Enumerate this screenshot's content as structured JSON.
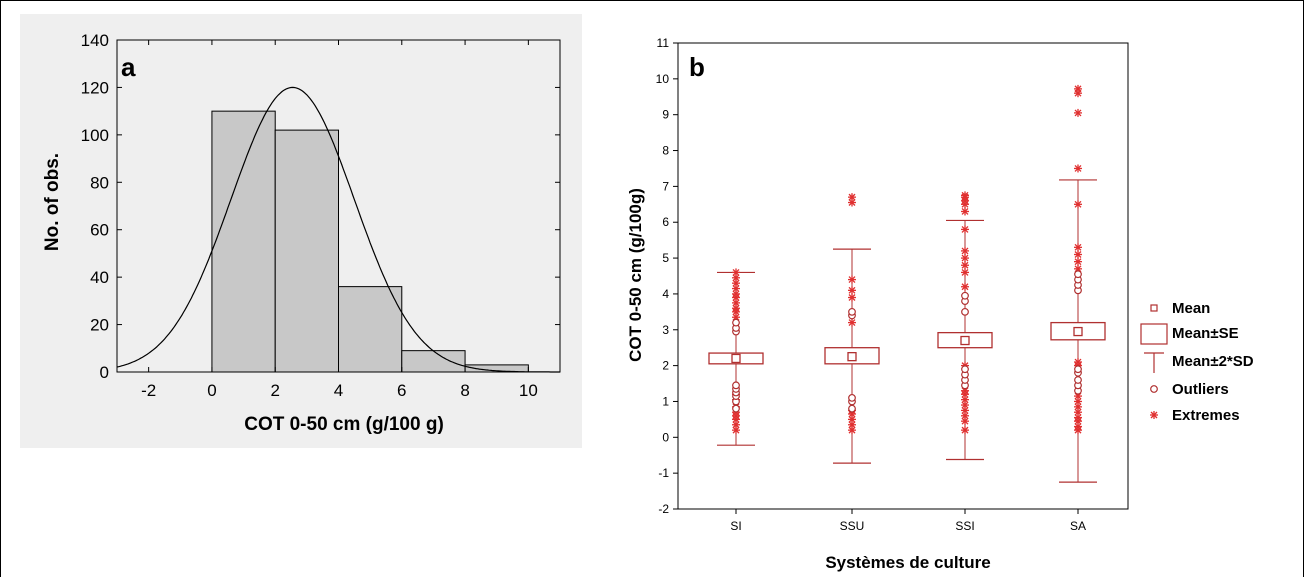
{
  "chart_data": [
    {
      "type": "bar",
      "subtype": "histogram-with-normal-fit",
      "panel_label": "a",
      "xlabel": "COT 0-50 cm (g/100 g)",
      "ylabel": "No. of obs.",
      "xlim": [
        -3,
        11
      ],
      "ylim": [
        0,
        140
      ],
      "x_ticks": [
        "-2",
        "0",
        "2",
        "4",
        "6",
        "8",
        "10"
      ],
      "y_ticks": [
        "0",
        "20",
        "40",
        "60",
        "80",
        "100",
        "120",
        "140"
      ],
      "bins": [
        {
          "from": 0,
          "to": 2,
          "count": 110
        },
        {
          "from": 2,
          "to": 4,
          "count": 102
        },
        {
          "from": 4,
          "to": 6,
          "count": 36
        },
        {
          "from": 6,
          "to": 8,
          "count": 9
        },
        {
          "from": 8,
          "to": 10,
          "count": 3
        }
      ],
      "normal_curve": {
        "mean": 2.55,
        "peak": 120
      },
      "bar_color": "#c8c8c8"
    },
    {
      "type": "box",
      "panel_label": "b",
      "xlabel": "Systèmes de culture",
      "ylabel": "COT 0-50 cm (g/100g)",
      "ylim": [
        -2,
        11
      ],
      "y_ticks": [
        "-2",
        "-1",
        "0",
        "1",
        "2",
        "3",
        "4",
        "5",
        "6",
        "7",
        "8",
        "9",
        "10",
        "11"
      ],
      "categories": [
        "SI",
        "SSU",
        "SSI",
        "SA"
      ],
      "groups": [
        {
          "name": "SI",
          "mean": 2.2,
          "se_low": 2.05,
          "se_high": 2.35,
          "sd2_low": -0.22,
          "sd2_high": 4.6,
          "outliers": [
            0.8,
            1.0,
            1.15,
            1.25,
            1.35,
            1.45,
            2.95,
            3.05,
            3.2
          ],
          "extremes": [
            0.2,
            0.35,
            0.5,
            0.6,
            0.7,
            0.85,
            1.05,
            1.2,
            3.35,
            3.5,
            3.6,
            3.75,
            3.9,
            4.0,
            4.15,
            4.3,
            4.45,
            4.6
          ]
        },
        {
          "name": "SSU",
          "mean": 2.25,
          "se_low": 2.05,
          "se_high": 2.5,
          "sd2_low": -0.72,
          "sd2_high": 5.25,
          "outliers": [
            0.8,
            1.0,
            1.1,
            3.4,
            3.5
          ],
          "extremes": [
            0.2,
            0.35,
            0.5,
            0.65,
            0.75,
            3.2,
            3.9,
            4.1,
            4.4,
            6.55,
            6.7
          ]
        },
        {
          "name": "SSI",
          "mean": 2.7,
          "se_low": 2.5,
          "se_high": 2.92,
          "sd2_low": -0.62,
          "sd2_high": 6.05,
          "outliers": [
            1.45,
            1.6,
            1.75,
            1.9,
            3.5,
            3.8,
            3.95
          ],
          "extremes": [
            0.2,
            0.45,
            0.6,
            0.75,
            0.9,
            1.05,
            1.2,
            1.3,
            2.0,
            4.2,
            4.6,
            4.8,
            5.0,
            5.2,
            5.8,
            6.3,
            6.5,
            6.6,
            6.7,
            6.75
          ]
        },
        {
          "name": "SA",
          "mean": 2.95,
          "se_low": 2.72,
          "se_high": 3.2,
          "sd2_low": -1.25,
          "sd2_high": 7.18,
          "outliers": [
            1.3,
            1.45,
            1.6,
            1.8,
            1.9,
            4.1,
            4.25,
            4.4,
            4.55
          ],
          "extremes": [
            0.2,
            0.3,
            0.45,
            0.55,
            0.7,
            0.85,
            1.0,
            1.15,
            2.0,
            2.1,
            4.7,
            4.9,
            5.1,
            5.3,
            6.5,
            7.5,
            9.05,
            9.6,
            9.72
          ]
        }
      ],
      "legend": {
        "placement": "right",
        "items": [
          "Mean",
          "Mean±SE",
          "Mean±2*SD",
          "Outliers",
          "Extremes"
        ]
      },
      "color": "#b03030",
      "extreme_color": "#e03030"
    }
  ]
}
